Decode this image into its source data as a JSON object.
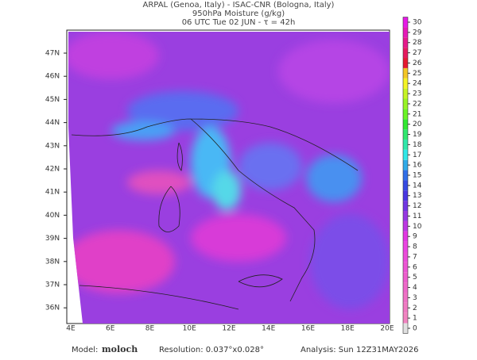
{
  "header": {
    "line1": "ARPAL (Genoa, Italy)  -  ISAC-CNR (Bologna, Italy)",
    "line2": "950hPa Moisture (g/kg)",
    "line3": "06 UTC Tue 02 JUN  -  τ = 42h"
  },
  "map": {
    "latitudes": [
      "47N",
      "46N",
      "45N",
      "44N",
      "43N",
      "42N",
      "41N",
      "40N",
      "39N",
      "38N",
      "37N",
      "36N"
    ],
    "longitudes": [
      "4E",
      "6E",
      "8E",
      "10E",
      "12E",
      "14E",
      "16E",
      "18E",
      "20E"
    ]
  },
  "colorbar": {
    "ticks": [
      0,
      1,
      2,
      3,
      4,
      5,
      6,
      7,
      8,
      9,
      10,
      11,
      12,
      13,
      14,
      15,
      16,
      17,
      18,
      19,
      20,
      21,
      22,
      23,
      24,
      25,
      26,
      27,
      28,
      29,
      30
    ]
  },
  "footer": {
    "model_label": "Model:",
    "model": "moloch",
    "resolution": "Resolution: 0.037°x0.028°",
    "analysis": "Analysis: Sun 12Z31MAY2026"
  }
}
